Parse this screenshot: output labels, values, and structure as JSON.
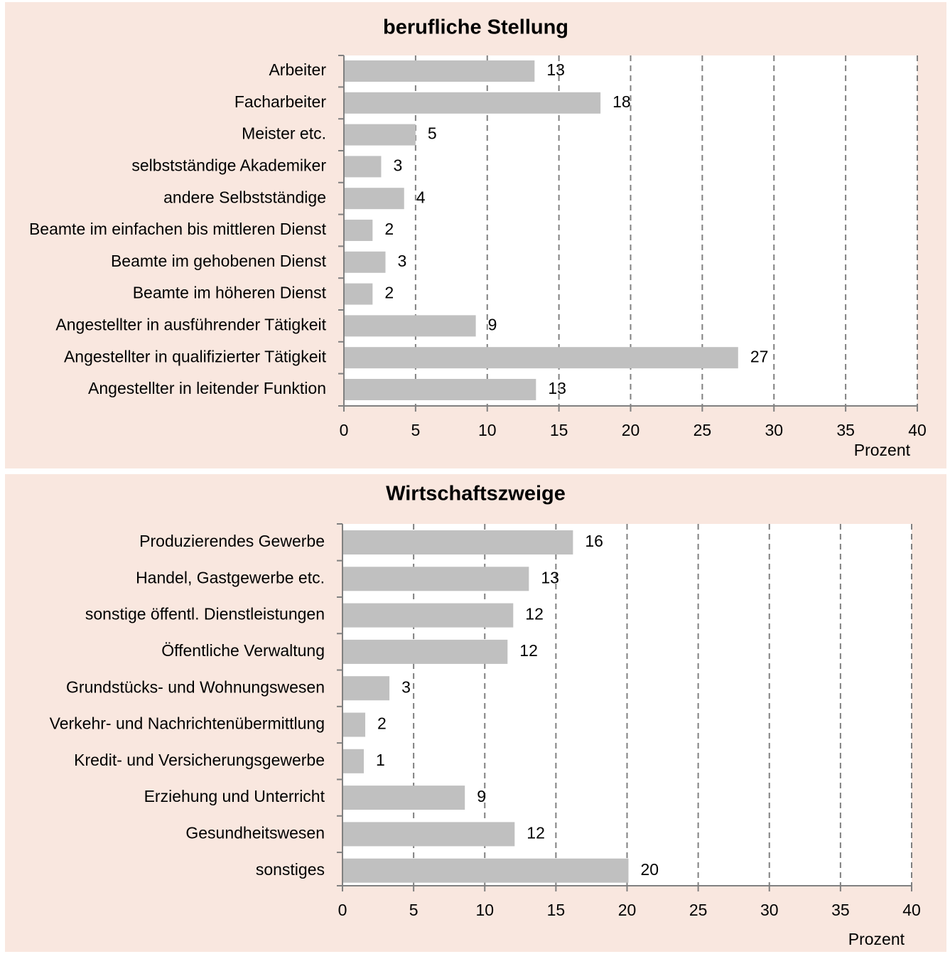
{
  "chart_data": [
    {
      "type": "bar",
      "orientation": "horizontal",
      "title": "berufliche Stellung",
      "xlabel": "Prozent",
      "ylabel": "",
      "xlim": [
        0,
        40
      ],
      "xticks": [
        0,
        5,
        10,
        15,
        20,
        25,
        30,
        35,
        40
      ],
      "grid": "vertical dashed",
      "categories": [
        "Arbeiter",
        "Facharbeiter",
        "Meister etc.",
        "selbstständige Akademiker",
        "andere Selbstständige",
        "Beamte im einfachen bis mittleren Dienst",
        "Beamte im gehobenen Dienst",
        "Beamte im höheren Dienst",
        "Angestellter in ausführender Tätigkeit",
        "Angestellter in qualifizierter Tätigkeit",
        "Angestellter in leitender Funktion"
      ],
      "values": [
        13.3,
        17.9,
        5.0,
        2.6,
        4.2,
        2.0,
        2.9,
        2.0,
        9.2,
        27.5,
        13.4
      ],
      "labels": [
        "13",
        "18",
        "5",
        "3",
        "4",
        "2",
        "3",
        "2",
        "9",
        "27",
        "13"
      ]
    },
    {
      "type": "bar",
      "orientation": "horizontal",
      "title": "Wirtschaftszweige",
      "xlabel": "Prozent",
      "ylabel": "",
      "xlim": [
        0,
        40
      ],
      "xticks": [
        0,
        5,
        10,
        15,
        20,
        25,
        30,
        35,
        40
      ],
      "grid": "vertical dashed",
      "categories": [
        "Produzierendes Gewerbe",
        "Handel, Gastgewerbe etc.",
        "sonstige öffentl. Dienstleistungen",
        "Öffentliche Verwaltung",
        "Grundstücks- und Wohnungswesen",
        "Verkehr- und Nachrichtenübermittlung",
        "Kredit- und Versicherungsgewerbe",
        "Erziehung und Unterricht",
        "Gesundheitswesen",
        "sonstiges"
      ],
      "values": [
        16.2,
        13.1,
        12.0,
        11.6,
        3.3,
        1.6,
        1.5,
        8.6,
        12.1,
        20.1
      ],
      "labels": [
        "16",
        "13",
        "12",
        "12",
        "3",
        "2",
        "1",
        "9",
        "12",
        "20"
      ]
    }
  ],
  "colors": {
    "panel_background": "#f9e7df",
    "plot_background": "#ffffff",
    "bar": "#c0c0c0",
    "axis": "#808080",
    "grid": "#808080",
    "text": "#000000"
  }
}
